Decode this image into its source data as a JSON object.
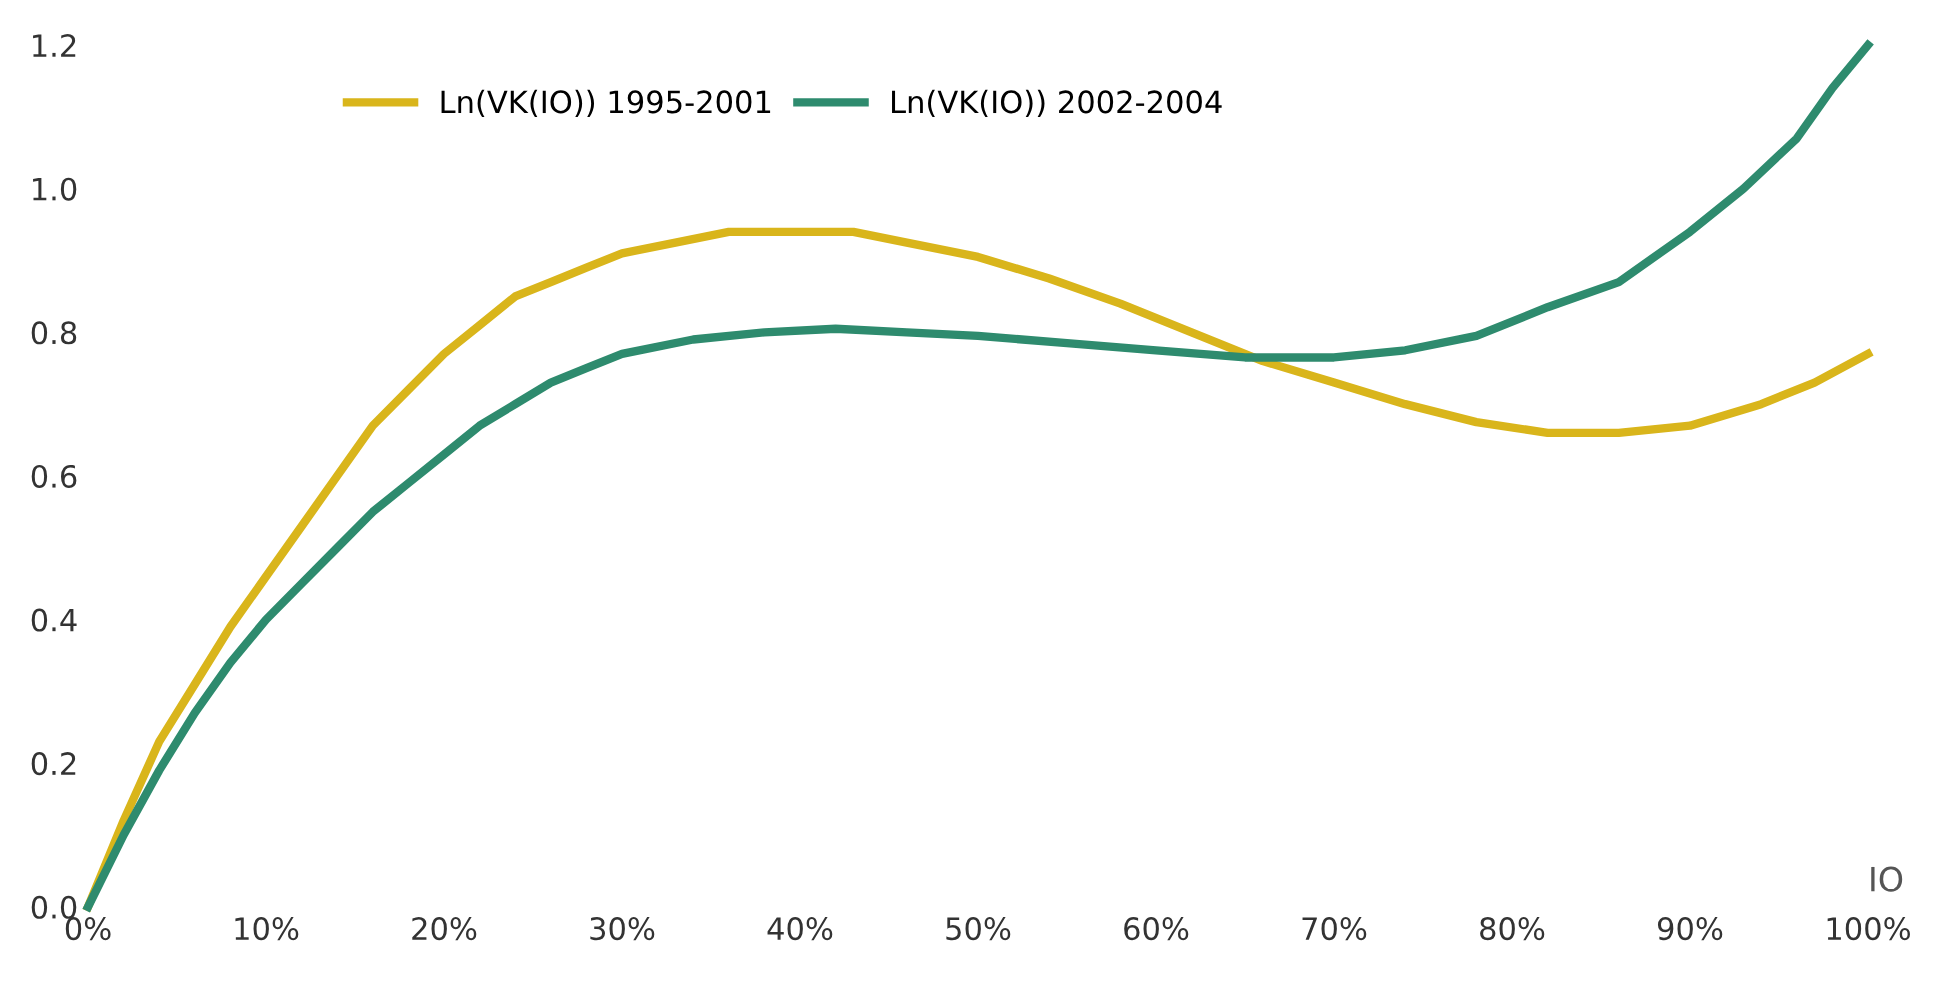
{
  "chart_data": {
    "type": "line",
    "xlabel": "IO",
    "legend": "top left",
    "grid": false,
    "marker": "none",
    "line_style": "solid",
    "xlim": [
      0,
      100
    ],
    "ylim": [
      0,
      1.2
    ],
    "xticks": [
      {
        "value": 0,
        "label": "0%"
      },
      {
        "value": 10,
        "label": "10%"
      },
      {
        "value": 20,
        "label": "20%"
      },
      {
        "value": 30,
        "label": "30%"
      },
      {
        "value": 40,
        "label": "40%"
      },
      {
        "value": 50,
        "label": "50%"
      },
      {
        "value": 60,
        "label": "60%"
      },
      {
        "value": 70,
        "label": "70%"
      },
      {
        "value": 80,
        "label": "80%"
      },
      {
        "value": 90,
        "label": "90%"
      },
      {
        "value": 100,
        "label": "100%"
      }
    ],
    "yticks": [
      {
        "value": 0,
        "label": "0.0"
      },
      {
        "value": 0.2,
        "label": "0.2"
      },
      {
        "value": 0.4,
        "label": "0.4"
      },
      {
        "value": 0.6,
        "label": "0.6"
      },
      {
        "value": 0.8,
        "label": "0.8"
      },
      {
        "value": 1.0,
        "label": "1.0"
      },
      {
        "value": 1.2,
        "label": "1.2"
      }
    ],
    "series": [
      {
        "name": "Ln(VK(IO)) 1995-2001",
        "color": "#d9b51b",
        "x": [
          0,
          2,
          4,
          6,
          8,
          10,
          12,
          14,
          16,
          18,
          20,
          22,
          24,
          26,
          28,
          30,
          33,
          36,
          40,
          43,
          46,
          50,
          54,
          58,
          62,
          66,
          70,
          74,
          78,
          82,
          86,
          90,
          94,
          97,
          100
        ],
        "values": [
          0,
          0.12,
          0.23,
          0.31,
          0.39,
          0.46,
          0.53,
          0.6,
          0.67,
          0.72,
          0.77,
          0.81,
          0.85,
          0.87,
          0.89,
          0.91,
          0.925,
          0.94,
          0.94,
          0.94,
          0.925,
          0.905,
          0.875,
          0.84,
          0.8,
          0.76,
          0.73,
          0.7,
          0.675,
          0.66,
          0.66,
          0.67,
          0.7,
          0.73,
          0.77
        ]
      },
      {
        "name": "Ln(VK(IO)) 2002-2004",
        "color": "#2e8b6e",
        "x": [
          0,
          2,
          4,
          6,
          8,
          10,
          12,
          14,
          16,
          18,
          20,
          22,
          24,
          26,
          28,
          30,
          34,
          38,
          42,
          46,
          50,
          55,
          60,
          65,
          70,
          74,
          78,
          82,
          86,
          90,
          93,
          96,
          98,
          100
        ],
        "values": [
          0,
          0.1,
          0.19,
          0.27,
          0.34,
          0.4,
          0.45,
          0.5,
          0.55,
          0.59,
          0.63,
          0.67,
          0.7,
          0.73,
          0.75,
          0.77,
          0.79,
          0.8,
          0.805,
          0.8,
          0.795,
          0.785,
          0.775,
          0.765,
          0.765,
          0.775,
          0.795,
          0.835,
          0.87,
          0.94,
          1.0,
          1.07,
          1.14,
          1.2
        ]
      }
    ]
  }
}
